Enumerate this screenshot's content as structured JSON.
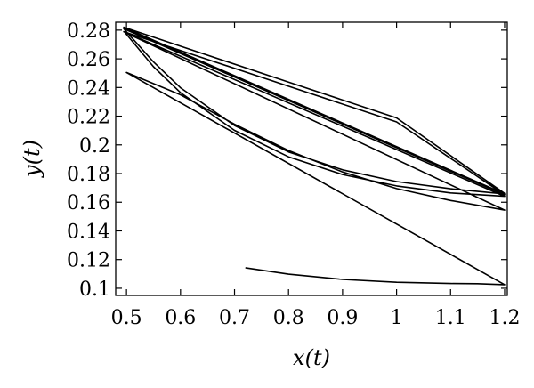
{
  "chart_data": {
    "type": "line",
    "title": "",
    "xlabel": "x(t)",
    "ylabel": "y(t)",
    "xlim": [
      0.48,
      1.205
    ],
    "ylim": [
      0.095,
      0.2855
    ],
    "grid": false,
    "legend": "none",
    "line_color": "#000000",
    "x_ticks": [
      0.5,
      0.6,
      0.7,
      0.8,
      0.9,
      1,
      1.1,
      1.2
    ],
    "x_tick_labels": [
      "0.5",
      "0.6",
      "0.7",
      "0.8",
      "0.9",
      "1",
      "1.1",
      "1.2"
    ],
    "y_ticks": [
      0.1,
      0.12,
      0.14,
      0.16,
      0.18,
      0.2,
      0.22,
      0.24,
      0.26,
      0.28
    ],
    "y_tick_labels": [
      "0.1",
      "0.12",
      "0.14",
      "0.16",
      "0.18",
      "0.2",
      "0.22",
      "0.24",
      "0.26",
      "0.28"
    ],
    "series": [
      {
        "x": [
          0.72,
          0.8,
          0.9,
          1.0,
          1.1,
          1.15,
          1.2,
          0.5,
          0.6,
          0.7,
          0.8,
          0.9,
          1.0,
          1.1,
          1.2,
          0.497,
          0.55,
          0.6,
          0.7,
          0.8,
          0.9,
          1.0,
          1.1,
          1.2,
          0.495,
          0.6,
          0.8,
          1.0,
          1.2,
          0.495,
          0.55,
          0.6,
          0.7,
          0.8,
          0.9,
          1.0,
          1.1,
          1.2,
          0.495,
          0.6,
          0.8,
          1.0,
          1.2
        ],
        "y": [
          0.1143,
          0.1098,
          0.1062,
          0.1042,
          0.1033,
          0.1032,
          0.1025,
          0.2505,
          0.2349,
          0.2144,
          0.1961,
          0.1811,
          0.1695,
          0.1612,
          0.1545,
          0.2784,
          0.2545,
          0.2364,
          0.2101,
          0.1917,
          0.1793,
          0.1714,
          0.1665,
          0.1641,
          0.2789,
          0.2658,
          0.2409,
          0.216,
          0.1652,
          0.281,
          0.2578,
          0.2398,
          0.2135,
          0.1951,
          0.1826,
          0.1744,
          0.1694,
          0.1658,
          0.282,
          0.2688,
          0.2438,
          0.2188,
          0.1662
        ]
      }
    ]
  }
}
